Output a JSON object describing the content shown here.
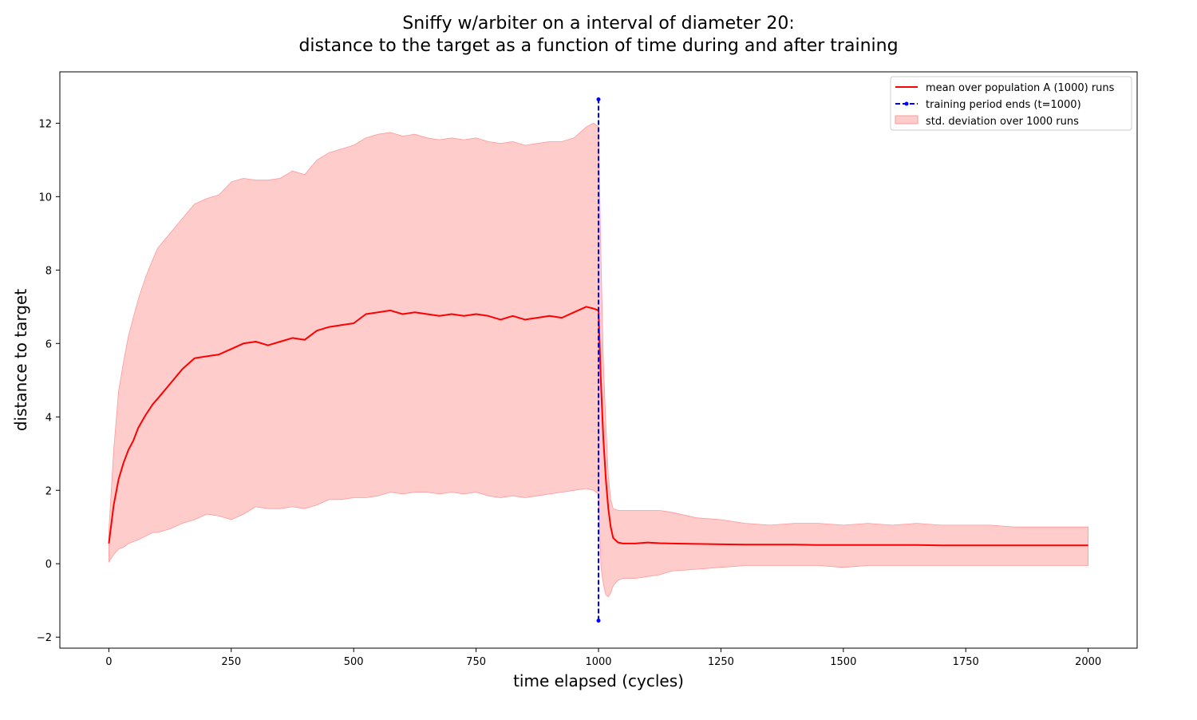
{
  "chart_data": {
    "type": "line",
    "title_lines": [
      "Sniffy w/arbiter on a interval of diameter 20:",
      "distance to the target as a function of time during and after training"
    ],
    "xlabel": "time elapsed (cycles)",
    "ylabel": "distance to target",
    "xlim": [
      -100,
      2100
    ],
    "ylim": [
      -2.3,
      13.4
    ],
    "x_ticks": [
      0,
      250,
      500,
      750,
      1000,
      1250,
      1500,
      1750,
      2000
    ],
    "y_ticks": [
      -2,
      0,
      2,
      4,
      6,
      8,
      10,
      12
    ],
    "legend_position": "top-right",
    "colors": {
      "mean": "#ff0000",
      "std_fill": "#ffcccc",
      "std_edge": "#ff9999",
      "training_marker": "#0000ff"
    },
    "series": [
      {
        "name": "mean over population A (1000) runs",
        "kind": "line",
        "x": [
          0,
          10,
          20,
          30,
          40,
          50,
          60,
          75,
          90,
          100,
          125,
          150,
          175,
          200,
          225,
          250,
          275,
          300,
          325,
          350,
          375,
          400,
          425,
          450,
          475,
          500,
          525,
          550,
          575,
          600,
          625,
          650,
          675,
          700,
          725,
          750,
          775,
          800,
          825,
          850,
          875,
          900,
          925,
          950,
          975,
          990,
          1000,
          1005,
          1010,
          1015,
          1020,
          1025,
          1030,
          1040,
          1050,
          1075,
          1100,
          1125,
          1150,
          1200,
          1250,
          1300,
          1350,
          1400,
          1450,
          1500,
          1550,
          1600,
          1650,
          1700,
          1750,
          1800,
          1850,
          1900,
          1950,
          2000
        ],
        "y": [
          0.55,
          1.6,
          2.3,
          2.75,
          3.1,
          3.35,
          3.7,
          4.05,
          4.35,
          4.5,
          4.9,
          5.3,
          5.6,
          5.65,
          5.7,
          5.85,
          6.0,
          6.05,
          5.95,
          6.05,
          6.15,
          6.1,
          6.35,
          6.45,
          6.5,
          6.55,
          6.8,
          6.85,
          6.9,
          6.8,
          6.85,
          6.8,
          6.75,
          6.8,
          6.75,
          6.8,
          6.75,
          6.65,
          6.75,
          6.65,
          6.7,
          6.75,
          6.7,
          6.85,
          7.0,
          6.95,
          6.9,
          4.9,
          3.4,
          2.3,
          1.5,
          1.0,
          0.7,
          0.58,
          0.55,
          0.55,
          0.58,
          0.56,
          0.55,
          0.54,
          0.53,
          0.52,
          0.52,
          0.52,
          0.51,
          0.51,
          0.51,
          0.51,
          0.51,
          0.5,
          0.5,
          0.5,
          0.5,
          0.5,
          0.5,
          0.5
        ]
      },
      {
        "name": "std. deviation over 1000 runs",
        "kind": "band",
        "x": [
          0,
          10,
          20,
          30,
          40,
          50,
          60,
          75,
          90,
          100,
          125,
          150,
          175,
          200,
          225,
          250,
          275,
          300,
          325,
          350,
          375,
          400,
          425,
          450,
          475,
          500,
          525,
          550,
          575,
          600,
          625,
          650,
          675,
          700,
          725,
          750,
          775,
          800,
          825,
          850,
          875,
          900,
          925,
          950,
          975,
          990,
          1000,
          1005,
          1010,
          1015,
          1020,
          1025,
          1030,
          1040,
          1050,
          1075,
          1100,
          1125,
          1150,
          1200,
          1250,
          1300,
          1350,
          1400,
          1450,
          1500,
          1550,
          1600,
          1650,
          1700,
          1750,
          1800,
          1850,
          1900,
          1950,
          2000
        ],
        "y_lower": [
          0.05,
          0.25,
          0.4,
          0.45,
          0.55,
          0.6,
          0.65,
          0.75,
          0.85,
          0.85,
          0.95,
          1.1,
          1.2,
          1.35,
          1.3,
          1.2,
          1.35,
          1.55,
          1.5,
          1.5,
          1.55,
          1.5,
          1.6,
          1.75,
          1.75,
          1.8,
          1.8,
          1.85,
          1.95,
          1.9,
          1.95,
          1.95,
          1.9,
          1.95,
          1.9,
          1.95,
          1.85,
          1.8,
          1.85,
          1.8,
          1.85,
          1.9,
          1.95,
          2.0,
          2.05,
          2.0,
          1.9,
          -0.1,
          -0.55,
          -0.85,
          -0.9,
          -0.8,
          -0.6,
          -0.45,
          -0.4,
          -0.4,
          -0.35,
          -0.3,
          -0.2,
          -0.15,
          -0.1,
          -0.05,
          -0.05,
          -0.05,
          -0.05,
          -0.1,
          -0.05,
          -0.05,
          -0.05,
          -0.05,
          -0.05,
          -0.05,
          -0.05,
          -0.05,
          -0.05,
          -0.05
        ],
        "y_upper": [
          0.9,
          3.1,
          4.7,
          5.5,
          6.2,
          6.7,
          7.2,
          7.8,
          8.3,
          8.6,
          9.0,
          9.4,
          9.8,
          9.95,
          10.05,
          10.4,
          10.5,
          10.45,
          10.45,
          10.5,
          10.7,
          10.6,
          11.0,
          11.2,
          11.3,
          11.4,
          11.6,
          11.7,
          11.75,
          11.65,
          11.7,
          11.6,
          11.55,
          11.6,
          11.55,
          11.6,
          11.5,
          11.45,
          11.5,
          11.4,
          11.45,
          11.5,
          11.5,
          11.6,
          11.9,
          12.0,
          11.9,
          8.3,
          5.5,
          3.8,
          2.4,
          1.75,
          1.5,
          1.45,
          1.45,
          1.45,
          1.45,
          1.45,
          1.4,
          1.25,
          1.2,
          1.1,
          1.05,
          1.1,
          1.1,
          1.05,
          1.1,
          1.05,
          1.1,
          1.05,
          1.05,
          1.05,
          1.0,
          1.0,
          1.0,
          1.0
        ]
      },
      {
        "name": "training period ends (t=1000)",
        "kind": "vline",
        "x": [
          1000,
          1000
        ],
        "y": [
          -1.55,
          12.65
        ]
      }
    ]
  }
}
